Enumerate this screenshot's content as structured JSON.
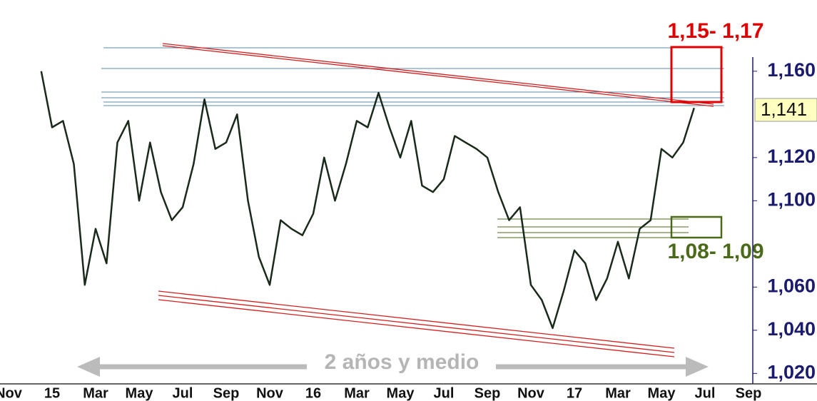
{
  "chart_data": {
    "type": "line",
    "categories": [
      "Nov",
      null,
      null,
      null,
      "15",
      null,
      null,
      null,
      "Mar",
      null,
      null,
      null,
      "May",
      null,
      null,
      null,
      "Jul",
      null,
      null,
      null,
      "Sep",
      null,
      null,
      null,
      "Nov",
      null,
      null,
      null,
      "16",
      null,
      null,
      null,
      "Mar",
      null,
      null,
      null,
      "May",
      null,
      null,
      null,
      "Jul",
      null,
      null,
      null,
      "Sep",
      null,
      null,
      null,
      "Nov",
      null,
      null,
      null,
      "17",
      null,
      null,
      null,
      "Mar",
      null,
      null,
      null,
      "May",
      null,
      null,
      null,
      "Jul",
      null,
      null,
      null,
      "Sep"
    ],
    "series": [
      {
        "color": "#1a2a1a",
        "values": [
          null,
          null,
          null,
          1.16,
          1.134,
          1.137,
          1.117,
          1.061,
          1.087,
          1.071,
          1.127,
          1.137,
          1.1,
          1.127,
          1.104,
          1.091,
          1.097,
          1.117,
          1.147,
          1.124,
          1.127,
          1.14,
          1.1,
          1.074,
          1.061,
          1.091,
          1.087,
          1.084,
          1.094,
          1.12,
          1.1,
          1.117,
          1.137,
          1.134,
          1.15,
          1.134,
          1.12,
          1.137,
          1.107,
          1.104,
          1.11,
          1.13,
          1.127,
          1.124,
          1.12,
          1.104,
          1.091,
          1.097,
          1.061,
          1.054,
          1.041,
          1.058,
          1.077,
          1.071,
          1.054,
          1.064,
          1.081,
          1.064,
          1.087,
          1.091,
          1.124,
          1.12,
          1.127,
          1.143,
          null,
          null,
          null,
          null,
          null
        ]
      }
    ],
    "ylim": [
      1.0145,
      1.193
    ],
    "yticks": [
      {
        "value": 1.02,
        "label": "1,020"
      },
      {
        "value": 1.04,
        "label": "1,040"
      },
      {
        "value": 1.06,
        "label": "1,060"
      },
      {
        "value": 1.1,
        "label": "1,100"
      },
      {
        "value": 1.12,
        "label": "1,120"
      },
      {
        "value": 1.16,
        "label": "1,160"
      }
    ],
    "annotations": {
      "resistance": "1,15- 1,17",
      "support": "1,08- 1,09",
      "span": "2 años y medio",
      "last_price": "1,141"
    }
  }
}
